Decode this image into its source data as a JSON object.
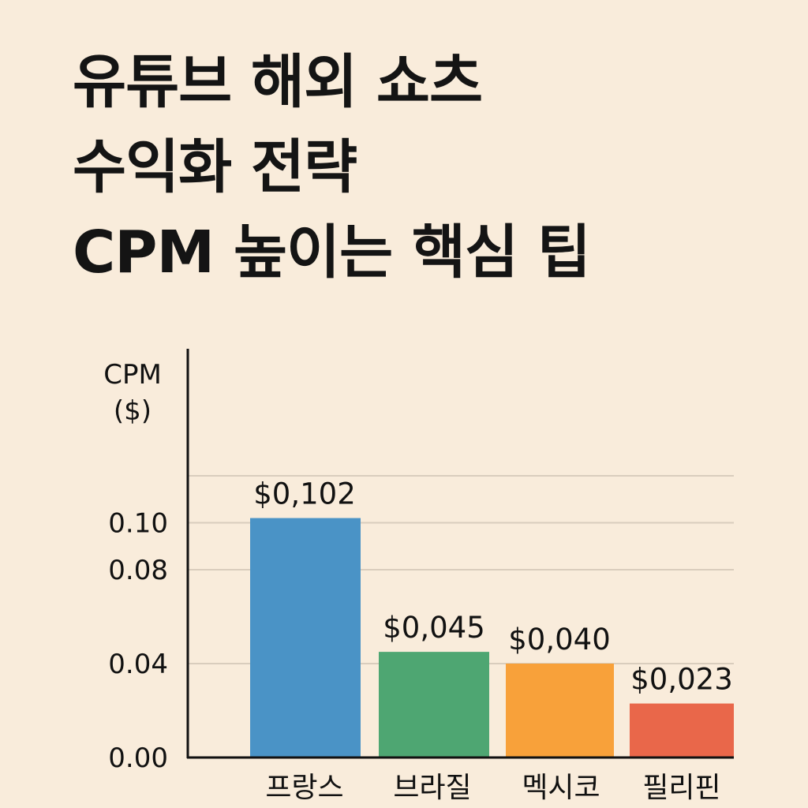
{
  "title_lines": [
    "유튜브 해외 쇼츠",
    "수익화 전략",
    "CPM 높이는 핵심 팁"
  ],
  "chart_data": {
    "type": "bar",
    "ylabel": "CPM\n($)",
    "ylim": [
      0,
      0.12
    ],
    "yticks": [
      {
        "value": 0.0,
        "label": "0.00"
      },
      {
        "value": 0.04,
        "label": "0.04"
      },
      {
        "value": 0.08,
        "label": "0.08"
      },
      {
        "value": 0.1,
        "label": "0.10"
      },
      {
        "value": 0.12,
        "label": ""
      }
    ],
    "grid": true,
    "categories": [
      "프랑스",
      "브라질",
      "멕시코",
      "필리핀"
    ],
    "values": [
      0.102,
      0.045,
      0.04,
      0.023
    ],
    "value_labels": [
      "$0,102",
      "$0,045",
      "$0,040",
      "$0,023"
    ],
    "colors": [
      "#4a93c6",
      "#4ea672",
      "#f8a13a",
      "#e9674a"
    ]
  }
}
